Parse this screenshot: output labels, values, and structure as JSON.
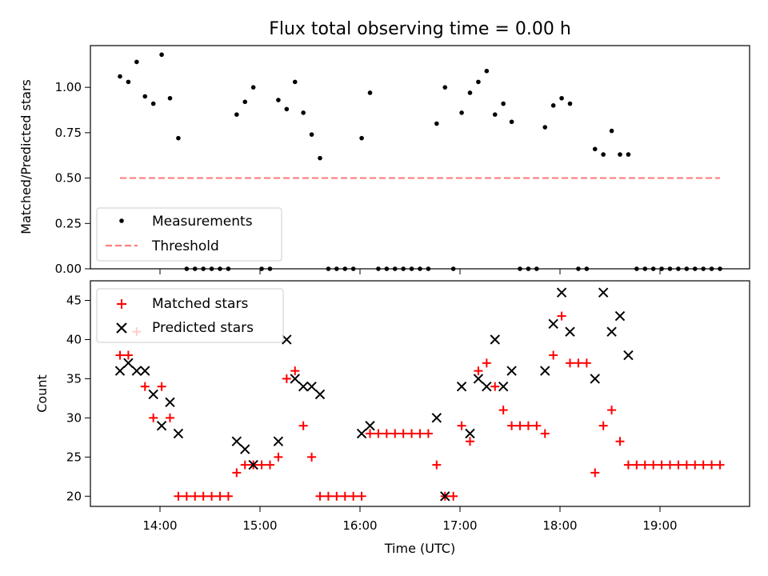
{
  "chart_data": [
    {
      "type": "scatter",
      "title": "Flux total observing time = 0.00 h",
      "xlabel": "",
      "ylabel": "Matched/Predicted stars",
      "ylim": [
        0,
        1.23
      ],
      "yticks": [
        "0.00",
        "0.25",
        "0.50",
        "0.75",
        "1.00"
      ],
      "legend_placement": "lower-left",
      "series": [
        {
          "name": "Measurements",
          "color": "#000000",
          "marker": "dot",
          "x": [
            "13:36",
            "13:41",
            "13:46",
            "13:51",
            "13:56",
            "14:01",
            "14:06",
            "14:11",
            "14:16",
            "14:21",
            "14:26",
            "14:31",
            "14:36",
            "14:41",
            "14:46",
            "14:51",
            "14:56",
            "15:01",
            "15:06",
            "15:11",
            "15:16",
            "15:21",
            "15:26",
            "15:31",
            "15:36",
            "15:41",
            "15:46",
            "15:51",
            "15:56",
            "16:01",
            "16:06",
            "16:11",
            "16:16",
            "16:21",
            "16:26",
            "16:31",
            "16:36",
            "16:41",
            "16:46",
            "16:51",
            "16:56",
            "17:01",
            "17:06",
            "17:11",
            "17:16",
            "17:21",
            "17:26",
            "17:31",
            "17:36",
            "17:41",
            "17:46",
            "17:51",
            "17:56",
            "18:01",
            "18:06",
            "18:11",
            "18:16",
            "18:21",
            "18:26",
            "18:31",
            "18:36",
            "18:41",
            "18:46",
            "18:51",
            "18:56",
            "19:01",
            "19:06",
            "19:11",
            "19:16",
            "19:21",
            "19:26",
            "19:31",
            "19:36"
          ],
          "y": [
            1.06,
            1.03,
            1.14,
            0.95,
            0.91,
            1.18,
            0.94,
            0.72,
            0,
            0,
            0,
            0,
            0,
            0,
            0.85,
            0.92,
            1.0,
            0,
            0,
            0.93,
            0.88,
            1.03,
            0.86,
            0.74,
            0.61,
            0,
            0,
            0,
            0,
            0.72,
            0.97,
            0,
            0,
            0,
            0,
            0,
            0,
            0,
            0.8,
            1.0,
            0,
            0.86,
            0.97,
            1.03,
            1.09,
            0.85,
            0.91,
            0.81,
            0,
            0,
            0,
            0.78,
            0.9,
            0.94,
            0.91,
            0,
            0,
            0.66,
            0.63,
            0.76,
            0.63,
            0.63,
            0,
            0,
            0,
            0,
            0,
            0,
            0,
            0,
            0,
            0,
            0
          ]
        },
        {
          "name": "Threshold",
          "color": "#ff7f7f",
          "style": "dashed",
          "x": [
            "13:36",
            "19:36"
          ],
          "y": [
            0.5,
            0.5
          ]
        }
      ]
    },
    {
      "type": "scatter",
      "title": "",
      "xlabel": "Time (UTC)",
      "ylabel": "Count",
      "ylim": [
        18.7,
        47.5
      ],
      "yticks": [
        "20",
        "25",
        "30",
        "35",
        "40",
        "45"
      ],
      "xticks": [
        "14:00",
        "15:00",
        "16:00",
        "17:00",
        "18:00",
        "19:00"
      ],
      "legend_placement": "upper-left",
      "series": [
        {
          "name": "Matched stars",
          "color": "#ff0000",
          "marker": "plus",
          "x": [
            "13:36",
            "13:41",
            "13:46",
            "13:51",
            "13:56",
            "14:01",
            "14:06",
            "14:11",
            "14:16",
            "14:21",
            "14:26",
            "14:31",
            "14:36",
            "14:41",
            "14:46",
            "14:51",
            "14:56",
            "15:01",
            "15:06",
            "15:11",
            "15:16",
            "15:21",
            "15:26",
            "15:31",
            "15:36",
            "15:41",
            "15:46",
            "15:51",
            "15:56",
            "16:01",
            "16:06",
            "16:11",
            "16:16",
            "16:21",
            "16:26",
            "16:31",
            "16:36",
            "16:41",
            "16:46",
            "16:51",
            "16:56",
            "17:01",
            "17:06",
            "17:11",
            "17:16",
            "17:21",
            "17:26",
            "17:31",
            "17:36",
            "17:41",
            "17:46",
            "17:51",
            "17:56",
            "18:01",
            "18:06",
            "18:11",
            "18:16",
            "18:21",
            "18:26",
            "18:31",
            "18:36",
            "18:41",
            "18:46",
            "18:51",
            "18:56",
            "19:01",
            "19:06",
            "19:11",
            "19:16",
            "19:21",
            "19:26",
            "19:31",
            "19:36"
          ],
          "y": [
            38,
            38,
            41,
            34,
            30,
            34,
            30,
            20,
            20,
            20,
            20,
            20,
            20,
            20,
            23,
            24,
            24,
            24,
            24,
            25,
            35,
            36,
            29,
            25,
            20,
            20,
            20,
            20,
            20,
            20,
            28,
            28,
            28,
            28,
            28,
            28,
            28,
            28,
            24,
            20,
            20,
            29,
            27,
            36,
            37,
            34,
            31,
            29,
            29,
            29,
            29,
            28,
            38,
            43,
            37,
            37,
            37,
            23,
            29,
            31,
            27,
            24,
            24,
            24,
            24,
            24,
            24,
            24,
            24,
            24,
            24,
            24,
            24
          ]
        },
        {
          "name": "Predicted stars",
          "color": "#000000",
          "marker": "x",
          "x": [
            "13:36",
            "13:41",
            "13:46",
            "13:51",
            "13:56",
            "14:01",
            "14:06",
            "14:11",
            "14:46",
            "14:51",
            "14:56",
            "15:11",
            "15:16",
            "15:21",
            "15:26",
            "15:31",
            "15:36",
            "16:01",
            "16:06",
            "16:46",
            "16:51",
            "17:01",
            "17:06",
            "17:11",
            "17:16",
            "17:21",
            "17:26",
            "17:31",
            "17:51",
            "17:56",
            "18:01",
            "18:06",
            "18:21",
            "18:26",
            "18:31",
            "18:36",
            "18:41"
          ],
          "y": [
            36,
            37,
            36,
            36,
            33,
            29,
            32,
            28,
            27,
            26,
            24,
            27,
            40,
            35,
            34,
            34,
            33,
            28,
            29,
            30,
            20,
            34,
            28,
            35,
            34,
            40,
            34,
            36,
            36,
            42,
            46,
            41,
            35,
            46,
            41,
            43,
            38
          ]
        }
      ]
    }
  ]
}
